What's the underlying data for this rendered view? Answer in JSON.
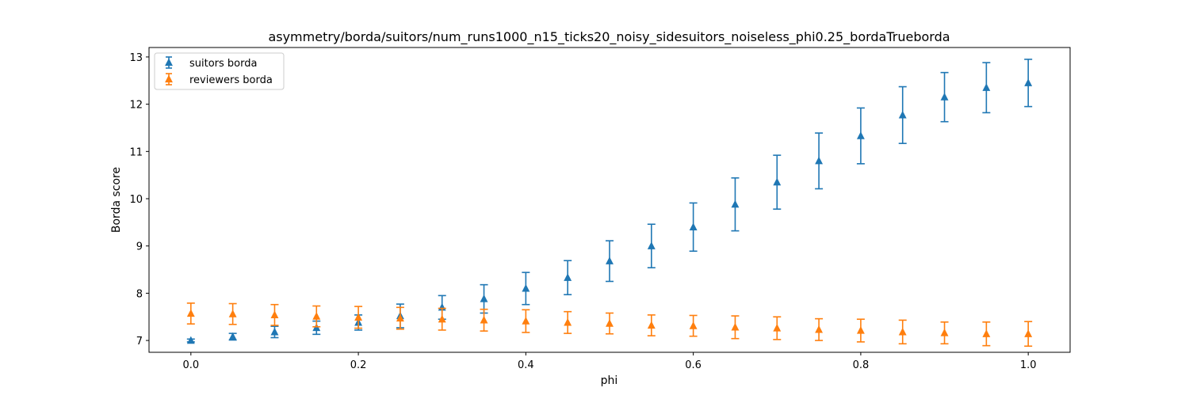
{
  "chart_data": {
    "type": "scatter",
    "title": "asymmetry/borda/suitors/num_runs1000_n15_ticks20_noisy_sidesuitors_noiseless_phi0.25_bordaTrueborda",
    "xlabel": "phi",
    "ylabel": "Borda score",
    "xlim": [
      -0.05,
      1.05
    ],
    "ylim": [
      6.75,
      13.2
    ],
    "xticks": [
      0.0,
      0.2,
      0.4,
      0.6,
      0.8,
      1.0
    ],
    "xtick_labels": [
      "0.0",
      "0.2",
      "0.4",
      "0.6",
      "0.8",
      "1.0"
    ],
    "yticks": [
      7,
      8,
      9,
      10,
      11,
      12,
      13
    ],
    "ytick_labels": [
      "7",
      "8",
      "9",
      "10",
      "11",
      "12",
      "13"
    ],
    "legend_position": "top-left",
    "grid": false,
    "x": [
      0.0,
      0.05,
      0.1,
      0.15,
      0.2,
      0.25,
      0.3,
      0.35,
      0.4,
      0.45,
      0.5,
      0.55,
      0.6,
      0.65,
      0.7,
      0.75,
      0.8,
      0.85,
      0.9,
      0.95,
      1.0
    ],
    "series": [
      {
        "name": "suitors borda",
        "color": "#1f77b4",
        "marker": "triangle",
        "values": [
          7.0,
          7.08,
          7.18,
          7.27,
          7.38,
          7.52,
          7.7,
          7.88,
          8.1,
          8.33,
          8.68,
          9.0,
          9.4,
          9.88,
          10.35,
          10.8,
          11.33,
          11.77,
          12.15,
          12.35,
          12.45
        ],
        "error": [
          0.03,
          0.07,
          0.12,
          0.14,
          0.16,
          0.25,
          0.25,
          0.3,
          0.34,
          0.36,
          0.43,
          0.46,
          0.51,
          0.56,
          0.57,
          0.59,
          0.59,
          0.6,
          0.52,
          0.53,
          0.5
        ]
      },
      {
        "name": "reviewers borda",
        "color": "#ff7f0e",
        "marker": "triangle",
        "values": [
          7.57,
          7.56,
          7.54,
          7.51,
          7.49,
          7.47,
          7.45,
          7.43,
          7.41,
          7.38,
          7.36,
          7.32,
          7.31,
          7.28,
          7.26,
          7.23,
          7.21,
          7.18,
          7.16,
          7.14,
          7.14
        ],
        "error": [
          0.22,
          0.22,
          0.22,
          0.22,
          0.23,
          0.23,
          0.23,
          0.23,
          0.24,
          0.23,
          0.22,
          0.22,
          0.22,
          0.24,
          0.24,
          0.23,
          0.24,
          0.25,
          0.23,
          0.25,
          0.26
        ]
      }
    ]
  }
}
